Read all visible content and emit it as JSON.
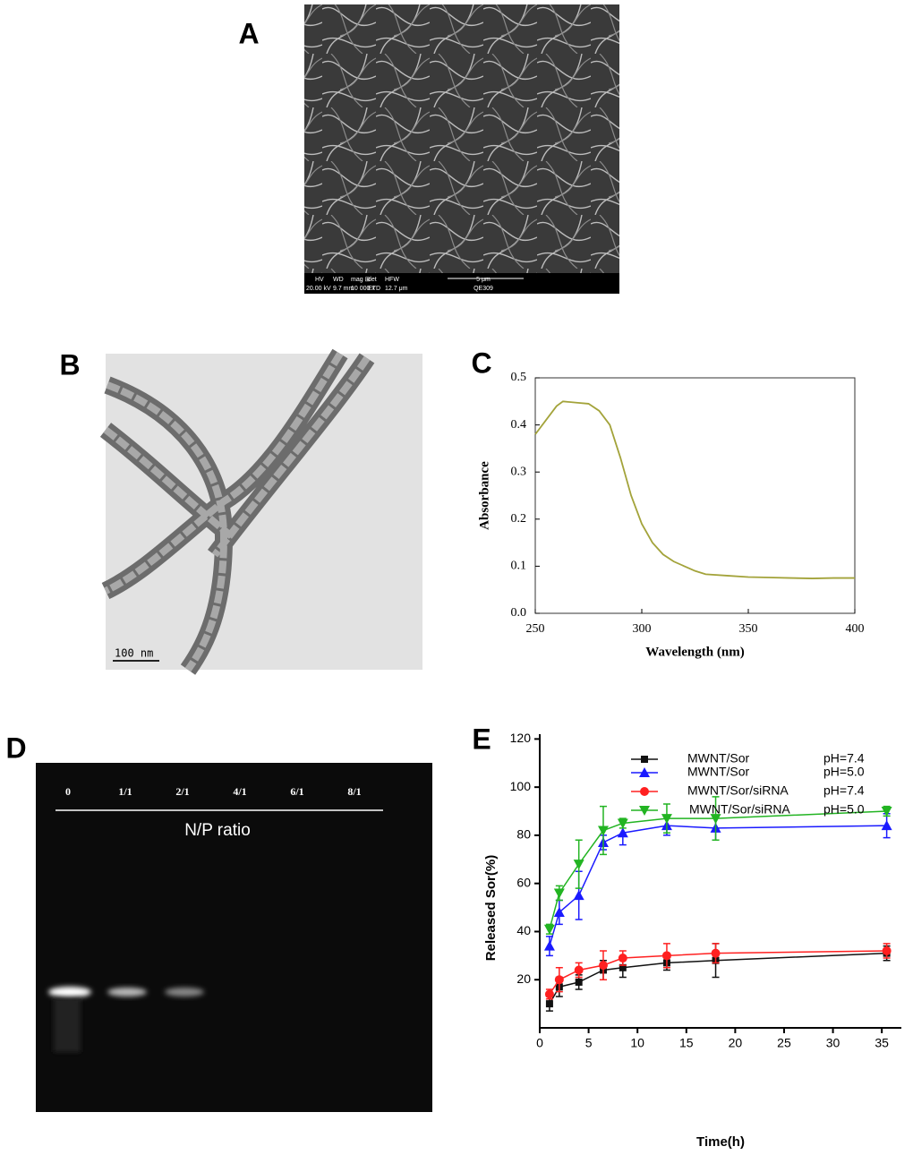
{
  "panel_a": {
    "label": "A",
    "info_headers": [
      "HV",
      "WD",
      "mag ⊞",
      "det",
      "HFW",
      "5 μm"
    ],
    "info_values": [
      "20.00 kV",
      "9.7 mm",
      "10 000 x",
      "ETD",
      "12.7 μm",
      "QE309"
    ]
  },
  "panel_b": {
    "label": "B",
    "scale_bar": "100 nm"
  },
  "panel_d": {
    "label": "D",
    "lanes": [
      "0",
      "1/1",
      "2/1",
      "4/1",
      "6/1",
      "8/1"
    ],
    "axis_label": "N/P ratio"
  },
  "chart_data": [
    {
      "type": "line",
      "label": "C",
      "x_label": "Wavelength (nm)",
      "y_label": "Absorbance",
      "color": "#a3a33a",
      "x": [
        250,
        255,
        260,
        263,
        270,
        275,
        280,
        285,
        290,
        295,
        300,
        305,
        310,
        315,
        320,
        325,
        330,
        340,
        350,
        360,
        370,
        380,
        390,
        400
      ],
      "values": [
        0.38,
        0.41,
        0.44,
        0.45,
        0.447,
        0.445,
        0.43,
        0.4,
        0.33,
        0.25,
        0.19,
        0.15,
        0.125,
        0.11,
        0.1,
        0.09,
        0.083,
        0.08,
        0.077,
        0.076,
        0.075,
        0.074,
        0.075,
        0.075
      ],
      "xlim": [
        250,
        400
      ],
      "xticks": [
        250,
        300,
        350,
        400
      ],
      "ylim": [
        0,
        0.5
      ],
      "yticks": [
        {
          "value": 0,
          "label": "0.0"
        },
        0.1,
        0.2,
        0.3,
        0.4,
        0.5
      ]
    },
    {
      "type": "scatter",
      "label": "E",
      "x_label": "Time(h)",
      "y_label": "Released Sor(%)",
      "x": [
        1,
        2,
        4,
        6.5,
        8.5,
        13,
        18,
        35.5
      ],
      "xlim": [
        0,
        37
      ],
      "xticks": [
        0,
        5,
        10,
        15,
        20,
        25,
        30,
        35
      ],
      "ylim": [
        0,
        122
      ],
      "yticks": [
        20,
        40,
        60,
        80,
        100,
        120
      ],
      "series": [
        {
          "name": "MWNT/Sor",
          "ph": "pH=7.4",
          "color": "#111111",
          "marker": "square",
          "values": [
            10,
            17,
            19,
            24,
            25,
            27,
            28,
            31
          ],
          "errors": [
            3,
            4,
            3,
            4,
            4,
            3,
            7,
            3
          ]
        },
        {
          "name": "MWNT/Sor",
          "ph": "pH=5.0",
          "color": "#1a1aff",
          "marker": "triangle-up",
          "values": [
            34,
            48,
            55,
            77,
            81,
            84,
            83,
            84
          ],
          "errors": [
            4,
            5,
            10,
            3,
            5,
            4,
            5,
            5
          ]
        },
        {
          "name": "MWNT/Sor/siRNA",
          "ph": "pH=7.4",
          "color": "#ff2020",
          "marker": "circle",
          "values": [
            14,
            20,
            24,
            26,
            29,
            30,
            31,
            32
          ],
          "errors": [
            2,
            5,
            3,
            6,
            3,
            5,
            4,
            3
          ]
        },
        {
          "name": "MWNT/Sor/siRNA",
          "ph": "pH=5.0",
          "color": "#22b422",
          "marker": "triangle-down",
          "values": [
            41,
            56,
            68,
            82,
            85,
            87,
            87,
            90
          ],
          "errors": [
            2,
            3,
            10,
            10,
            2,
            6,
            9,
            2
          ]
        }
      ]
    }
  ]
}
